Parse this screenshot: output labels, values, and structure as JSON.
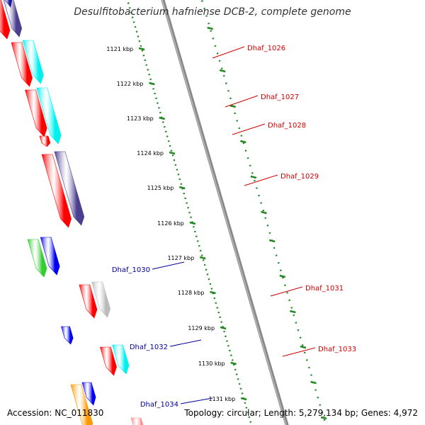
{
  "title": "Desulfitobacterium hafniense DCB-2, complete genome",
  "accession": "Accession: NC_011830",
  "summary": "Topology: circular; Length: 5,279,134 bp; Genes: 4,972",
  "scale_labels": [
    "1121 kbp",
    "1122 kbp",
    "1123 kbp",
    "1124 kbp",
    "1125 kbp",
    "1126 kbp",
    "1127 kbp",
    "1128 kbp",
    "1129 kbp",
    "1130 kbp",
    "1131 kbp"
  ],
  "colors": {
    "forward_label": "#cc0000",
    "reverse_label": "#000099",
    "backbone": "#888888",
    "scale": "#228822"
  },
  "gene_labels": [
    {
      "text": "Dhaf_1026",
      "strand": "forward"
    },
    {
      "text": "Dhaf_1027",
      "strand": "forward"
    },
    {
      "text": "Dhaf_1028",
      "strand": "forward"
    },
    {
      "text": "Dhaf_1029",
      "strand": "forward"
    },
    {
      "text": "Dhaf_1030",
      "strand": "reverse"
    },
    {
      "text": "Dhaf_1031",
      "strand": "forward"
    },
    {
      "text": "Dhaf_1032",
      "strand": "reverse"
    },
    {
      "text": "Dhaf_1033",
      "strand": "forward"
    },
    {
      "text": "Dhaf_1034",
      "strand": "reverse"
    }
  ]
}
